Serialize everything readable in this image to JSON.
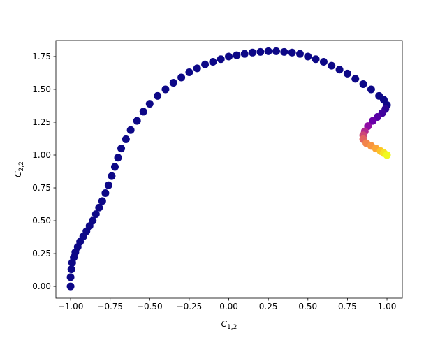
{
  "chart_data": {
    "type": "scatter",
    "xlabel": {
      "base": "C",
      "sub": "1,2"
    },
    "ylabel": {
      "base": "C",
      "sub": "2,2"
    },
    "xlim": [
      -1.093,
      1.097
    ],
    "ylim": [
      -0.09,
      1.872
    ],
    "xticks": [
      {
        "value": -1,
        "label": "−1.00"
      },
      {
        "value": -0.75,
        "label": "−0.75"
      },
      {
        "value": -0.5,
        "label": "−0.50"
      },
      {
        "value": -0.25,
        "label": "−0.25"
      },
      {
        "value": 0,
        "label": "0.00"
      },
      {
        "value": 0.25,
        "label": "0.25"
      },
      {
        "value": 0.5,
        "label": "0.50"
      },
      {
        "value": 0.75,
        "label": "0.75"
      },
      {
        "value": 1,
        "label": "1.00"
      }
    ],
    "yticks": [
      {
        "value": 0,
        "label": "0.00"
      },
      {
        "value": 0.25,
        "label": "0.25"
      },
      {
        "value": 0.5,
        "label": "0.50"
      },
      {
        "value": 0.75,
        "label": "0.75"
      },
      {
        "value": 1,
        "label": "1.00"
      },
      {
        "value": 1.25,
        "label": "1.25"
      },
      {
        "value": 1.5,
        "label": "1.50"
      },
      {
        "value": 1.75,
        "label": "1.75"
      }
    ],
    "series": [
      {
        "x": [
          -1.0,
          -1.0,
          -0.995,
          -0.99,
          -0.98,
          -0.97,
          -0.955,
          -0.94,
          -0.92,
          -0.9,
          -0.88,
          -0.86,
          -0.84,
          -0.82,
          -0.8,
          -0.78,
          -0.76,
          -0.74,
          -0.72,
          -0.7,
          -0.68,
          -0.65,
          -0.62,
          -0.58,
          -0.54,
          -0.5,
          -0.45,
          -0.4,
          -0.35,
          -0.3,
          -0.25,
          -0.2,
          -0.15,
          -0.1,
          -0.05,
          0,
          0.05,
          0.1,
          0.15,
          0.2,
          0.25,
          0.3,
          0.35,
          0.4,
          0.45,
          0.5,
          0.55,
          0.6,
          0.65,
          0.7,
          0.75,
          0.8,
          0.85,
          0.9,
          0.95,
          0.98,
          1.0,
          0.99,
          0.97,
          0.94,
          0.91,
          0.88,
          0.86,
          0.85,
          0.85,
          0.87,
          0.9,
          0.93,
          0.96,
          0.98,
          1.0
        ],
        "values": [
          0.0,
          0.07,
          0.13,
          0.18,
          0.22,
          0.26,
          0.3,
          0.34,
          0.38,
          0.42,
          0.46,
          0.5,
          0.55,
          0.6,
          0.65,
          0.71,
          0.77,
          0.84,
          0.91,
          0.98,
          1.05,
          1.12,
          1.19,
          1.26,
          1.33,
          1.39,
          1.45,
          1.5,
          1.55,
          1.59,
          1.63,
          1.66,
          1.69,
          1.71,
          1.73,
          1.75,
          1.76,
          1.77,
          1.78,
          1.785,
          1.79,
          1.79,
          1.785,
          1.78,
          1.77,
          1.75,
          1.73,
          1.71,
          1.68,
          1.65,
          1.62,
          1.58,
          1.54,
          1.5,
          1.45,
          1.42,
          1.38,
          1.35,
          1.32,
          1.29,
          1.26,
          1.22,
          1.18,
          1.15,
          1.12,
          1.09,
          1.07,
          1.05,
          1.03,
          1.015,
          1.0
        ],
        "colors": [
          "#0d0887",
          "#0d0887",
          "#0d0887",
          "#0d0887",
          "#0d0887",
          "#0d0887",
          "#0d0887",
          "#0d0887",
          "#0d0887",
          "#0d0887",
          "#0d0887",
          "#0d0887",
          "#0d0887",
          "#0d0887",
          "#0d0887",
          "#0d0887",
          "#0d0887",
          "#0d0887",
          "#0d0887",
          "#0d0887",
          "#0d0887",
          "#0d0887",
          "#0d0887",
          "#0d0887",
          "#0d0887",
          "#0d0887",
          "#0d0887",
          "#0d0887",
          "#0d0887",
          "#0d0887",
          "#0d0887",
          "#0d0887",
          "#0d0887",
          "#0d0887",
          "#0d0887",
          "#0d0887",
          "#0d0887",
          "#0d0887",
          "#0d0887",
          "#0d0887",
          "#0d0887",
          "#0d0887",
          "#0d0887",
          "#0d0887",
          "#0d0887",
          "#0d0887",
          "#0d0887",
          "#0d0887",
          "#0d0887",
          "#0d0887",
          "#0d0887",
          "#0d0887",
          "#0d0887",
          "#0d0887",
          "#0d0887",
          "#0d0887",
          "#0d0887",
          "#2a0593",
          "#41049d",
          "#5601a4",
          "#6a00a8",
          "#8f0da4",
          "#b12a90",
          "#cc4778",
          "#e16462",
          "#f2844b",
          "#f89540",
          "#fca636",
          "#fdc328",
          "#f7e225",
          "#f0f921"
        ]
      }
    ]
  }
}
